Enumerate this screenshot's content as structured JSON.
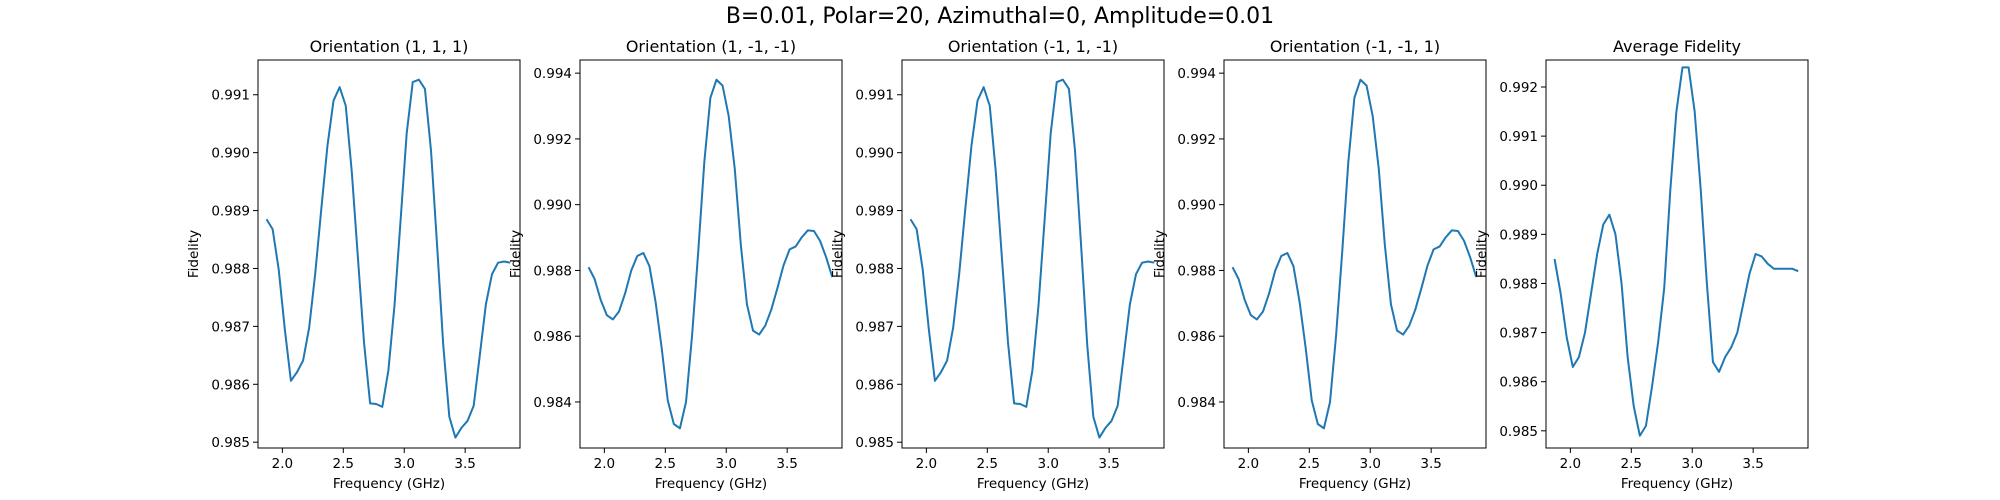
{
  "figure": {
    "suptitle": "B=0.01, Polar=20, Azimuthal=0, Amplitude=0.01"
  },
  "colors": {
    "line": "#1f77b4"
  },
  "chart_data": [
    {
      "type": "line",
      "title": "Orientation (1, 1, 1)",
      "xlabel": "Frequency (GHz)",
      "ylabel": "Fidelity",
      "xlim": [
        1.8,
        3.95
      ],
      "ylim": [
        0.9849,
        0.9916
      ],
      "xticks": [
        2.0,
        2.5,
        3.0,
        3.5
      ],
      "xtick_labels": [
        "2.0",
        "2.5",
        "3.0",
        "3.5"
      ],
      "yticks": [
        0.985,
        0.986,
        0.987,
        0.988,
        0.989,
        0.99,
        0.991
      ],
      "ytick_labels": [
        "0.985",
        "0.986",
        "0.987",
        "0.988",
        "0.989",
        "0.990",
        "0.991"
      ],
      "series": [
        {
          "x": [
            1.87,
            1.92,
            1.97,
            2.02,
            2.07,
            2.12,
            2.17,
            2.22,
            2.27,
            2.32,
            2.37,
            2.42,
            2.47,
            2.52,
            2.57,
            2.62,
            2.67,
            2.72,
            2.77,
            2.82,
            2.87,
            2.92,
            2.97,
            3.02,
            3.07,
            3.12,
            3.17,
            3.22,
            3.27,
            3.32,
            3.37,
            3.42,
            3.47,
            3.52,
            3.57,
            3.62,
            3.67,
            3.72,
            3.77,
            3.82,
            3.87
          ],
          "y": [
            0.98885,
            0.98868,
            0.98798,
            0.98695,
            0.98606,
            0.98621,
            0.98641,
            0.98698,
            0.98792,
            0.98904,
            0.99012,
            0.9909,
            0.99113,
            0.99081,
            0.98966,
            0.98818,
            0.98672,
            0.98567,
            0.98566,
            0.98561,
            0.98624,
            0.98736,
            0.98883,
            0.99033,
            0.99122,
            0.99126,
            0.9911,
            0.99003,
            0.98839,
            0.98668,
            0.98544,
            0.98508,
            0.98525,
            0.98537,
            0.98563,
            0.9865,
            0.98738,
            0.9879,
            0.9881,
            0.98812,
            0.9881
          ]
        }
      ]
    },
    {
      "type": "line",
      "title": "Orientation (1, -1, -1)",
      "xlabel": "Frequency (GHz)",
      "ylabel": "Fidelity",
      "xlim": [
        1.8,
        3.95
      ],
      "ylim": [
        0.9826,
        0.9944
      ],
      "xticks": [
        2.0,
        2.5,
        3.0,
        3.5
      ],
      "xtick_labels": [
        "2.0",
        "2.5",
        "3.0",
        "3.5"
      ],
      "yticks": [
        0.984,
        0.986,
        0.988,
        0.99,
        0.992,
        0.994
      ],
      "ytick_labels": [
        "0.984",
        "0.986",
        "0.988",
        "0.990",
        "0.992",
        "0.994"
      ],
      "series": [
        {
          "x": [
            1.87,
            1.92,
            1.97,
            2.02,
            2.07,
            2.12,
            2.17,
            2.22,
            2.27,
            2.32,
            2.37,
            2.42,
            2.47,
            2.52,
            2.57,
            2.62,
            2.67,
            2.72,
            2.77,
            2.82,
            2.87,
            2.92,
            2.97,
            3.02,
            3.07,
            3.12,
            3.17,
            3.22,
            3.27,
            3.32,
            3.37,
            3.42,
            3.47,
            3.52,
            3.57,
            3.62,
            3.67,
            3.72,
            3.77,
            3.82,
            3.87
          ],
          "y": [
            0.9881,
            0.98774,
            0.9871,
            0.98664,
            0.98651,
            0.98675,
            0.9873,
            0.98799,
            0.98844,
            0.98853,
            0.98813,
            0.98705,
            0.98565,
            0.98405,
            0.98333,
            0.9832,
            0.984,
            0.98603,
            0.98856,
            0.99129,
            0.99325,
            0.9938,
            0.99362,
            0.9927,
            0.99109,
            0.98877,
            0.98697,
            0.98617,
            0.98605,
            0.98632,
            0.98681,
            0.98746,
            0.98815,
            0.98864,
            0.98873,
            0.98901,
            0.98922,
            0.9892,
            0.9889,
            0.9884,
            0.9878
          ]
        }
      ]
    },
    {
      "type": "line",
      "title": "Orientation (-1, 1, -1)",
      "xlabel": "Frequency (GHz)",
      "ylabel": "Fidelity",
      "xlim": [
        1.8,
        3.95
      ],
      "ylim": [
        0.9849,
        0.9916
      ],
      "xticks": [
        2.0,
        2.5,
        3.0,
        3.5
      ],
      "xtick_labels": [
        "2.0",
        "2.5",
        "3.0",
        "3.5"
      ],
      "yticks": [
        0.985,
        0.986,
        0.987,
        0.988,
        0.989,
        0.99,
        0.991
      ],
      "ytick_labels": [
        "0.985",
        "0.986",
        "0.987",
        "0.988",
        "0.989",
        "0.990",
        "0.991"
      ],
      "series": [
        {
          "x": [
            1.87,
            1.92,
            1.97,
            2.02,
            2.07,
            2.12,
            2.17,
            2.22,
            2.27,
            2.32,
            2.37,
            2.42,
            2.47,
            2.52,
            2.57,
            2.62,
            2.67,
            2.72,
            2.77,
            2.82,
            2.87,
            2.92,
            2.97,
            3.02,
            3.07,
            3.12,
            3.17,
            3.22,
            3.27,
            3.32,
            3.37,
            3.42,
            3.47,
            3.52,
            3.57,
            3.62,
            3.67,
            3.72,
            3.77,
            3.82,
            3.87
          ],
          "y": [
            0.98885,
            0.98868,
            0.98798,
            0.98695,
            0.98606,
            0.98621,
            0.98641,
            0.98698,
            0.98792,
            0.98904,
            0.99012,
            0.9909,
            0.99113,
            0.99081,
            0.98966,
            0.98818,
            0.98672,
            0.98567,
            0.98566,
            0.98561,
            0.98624,
            0.98736,
            0.98883,
            0.99033,
            0.99122,
            0.99126,
            0.9911,
            0.99003,
            0.98839,
            0.98668,
            0.98544,
            0.98508,
            0.98525,
            0.98537,
            0.98563,
            0.9865,
            0.98738,
            0.9879,
            0.9881,
            0.98812,
            0.9881
          ]
        }
      ]
    },
    {
      "type": "line",
      "title": "Orientation (-1, -1, 1)",
      "xlabel": "Frequency (GHz)",
      "ylabel": "Fidelity",
      "xlim": [
        1.8,
        3.95
      ],
      "ylim": [
        0.9826,
        0.9944
      ],
      "xticks": [
        2.0,
        2.5,
        3.0,
        3.5
      ],
      "xtick_labels": [
        "2.0",
        "2.5",
        "3.0",
        "3.5"
      ],
      "yticks": [
        0.984,
        0.986,
        0.988,
        0.99,
        0.992,
        0.994
      ],
      "ytick_labels": [
        "0.984",
        "0.986",
        "0.988",
        "0.990",
        "0.992",
        "0.994"
      ],
      "series": [
        {
          "x": [
            1.87,
            1.92,
            1.97,
            2.02,
            2.07,
            2.12,
            2.17,
            2.22,
            2.27,
            2.32,
            2.37,
            2.42,
            2.47,
            2.52,
            2.57,
            2.62,
            2.67,
            2.72,
            2.77,
            2.82,
            2.87,
            2.92,
            2.97,
            3.02,
            3.07,
            3.12,
            3.17,
            3.22,
            3.27,
            3.32,
            3.37,
            3.42,
            3.47,
            3.52,
            3.57,
            3.62,
            3.67,
            3.72,
            3.77,
            3.82,
            3.87
          ],
          "y": [
            0.9881,
            0.98774,
            0.9871,
            0.98664,
            0.98651,
            0.98675,
            0.9873,
            0.98799,
            0.98844,
            0.98853,
            0.98813,
            0.98705,
            0.98565,
            0.98405,
            0.98333,
            0.9832,
            0.984,
            0.98603,
            0.98856,
            0.99129,
            0.99325,
            0.9938,
            0.99362,
            0.9927,
            0.99109,
            0.98877,
            0.98697,
            0.98617,
            0.98605,
            0.98632,
            0.98681,
            0.98746,
            0.98815,
            0.98864,
            0.98873,
            0.98901,
            0.98922,
            0.9892,
            0.9889,
            0.9884,
            0.9878
          ]
        }
      ]
    },
    {
      "type": "line",
      "title": "Average Fidelity",
      "xlabel": "Frequency (GHz)",
      "ylabel": "Fidelity",
      "xlim": [
        1.8,
        3.95
      ],
      "ylim": [
        0.98465,
        0.99255
      ],
      "xticks": [
        2.0,
        2.5,
        3.0,
        3.5
      ],
      "xtick_labels": [
        "2.0",
        "2.5",
        "3.0",
        "3.5"
      ],
      "yticks": [
        0.985,
        0.986,
        0.987,
        0.988,
        0.989,
        0.99,
        0.991,
        0.992
      ],
      "ytick_labels": [
        "0.985",
        "0.986",
        "0.987",
        "0.988",
        "0.989",
        "0.990",
        "0.991",
        "0.992"
      ],
      "series": [
        {
          "x": [
            1.87,
            1.92,
            1.97,
            2.02,
            2.07,
            2.12,
            2.17,
            2.22,
            2.27,
            2.32,
            2.37,
            2.42,
            2.47,
            2.52,
            2.57,
            2.62,
            2.67,
            2.72,
            2.77,
            2.82,
            2.87,
            2.92,
            2.97,
            3.02,
            3.07,
            3.12,
            3.17,
            3.22,
            3.27,
            3.32,
            3.37,
            3.42,
            3.47,
            3.52,
            3.57,
            3.62,
            3.67,
            3.72,
            3.77,
            3.82,
            3.87
          ],
          "y": [
            0.9885,
            0.9878,
            0.9869,
            0.9863,
            0.9865,
            0.987,
            0.9878,
            0.9886,
            0.9892,
            0.9894,
            0.989,
            0.988,
            0.9865,
            0.9855,
            0.9849,
            0.9851,
            0.9859,
            0.9868,
            0.9879,
            0.9899,
            0.9915,
            0.9924,
            0.9924,
            0.9915,
            0.9899,
            0.988,
            0.9864,
            0.9862,
            0.9865,
            0.9867,
            0.987,
            0.9876,
            0.9882,
            0.9886,
            0.98855,
            0.9884,
            0.9883,
            0.9883,
            0.9883,
            0.9883,
            0.98825
          ]
        }
      ]
    }
  ]
}
